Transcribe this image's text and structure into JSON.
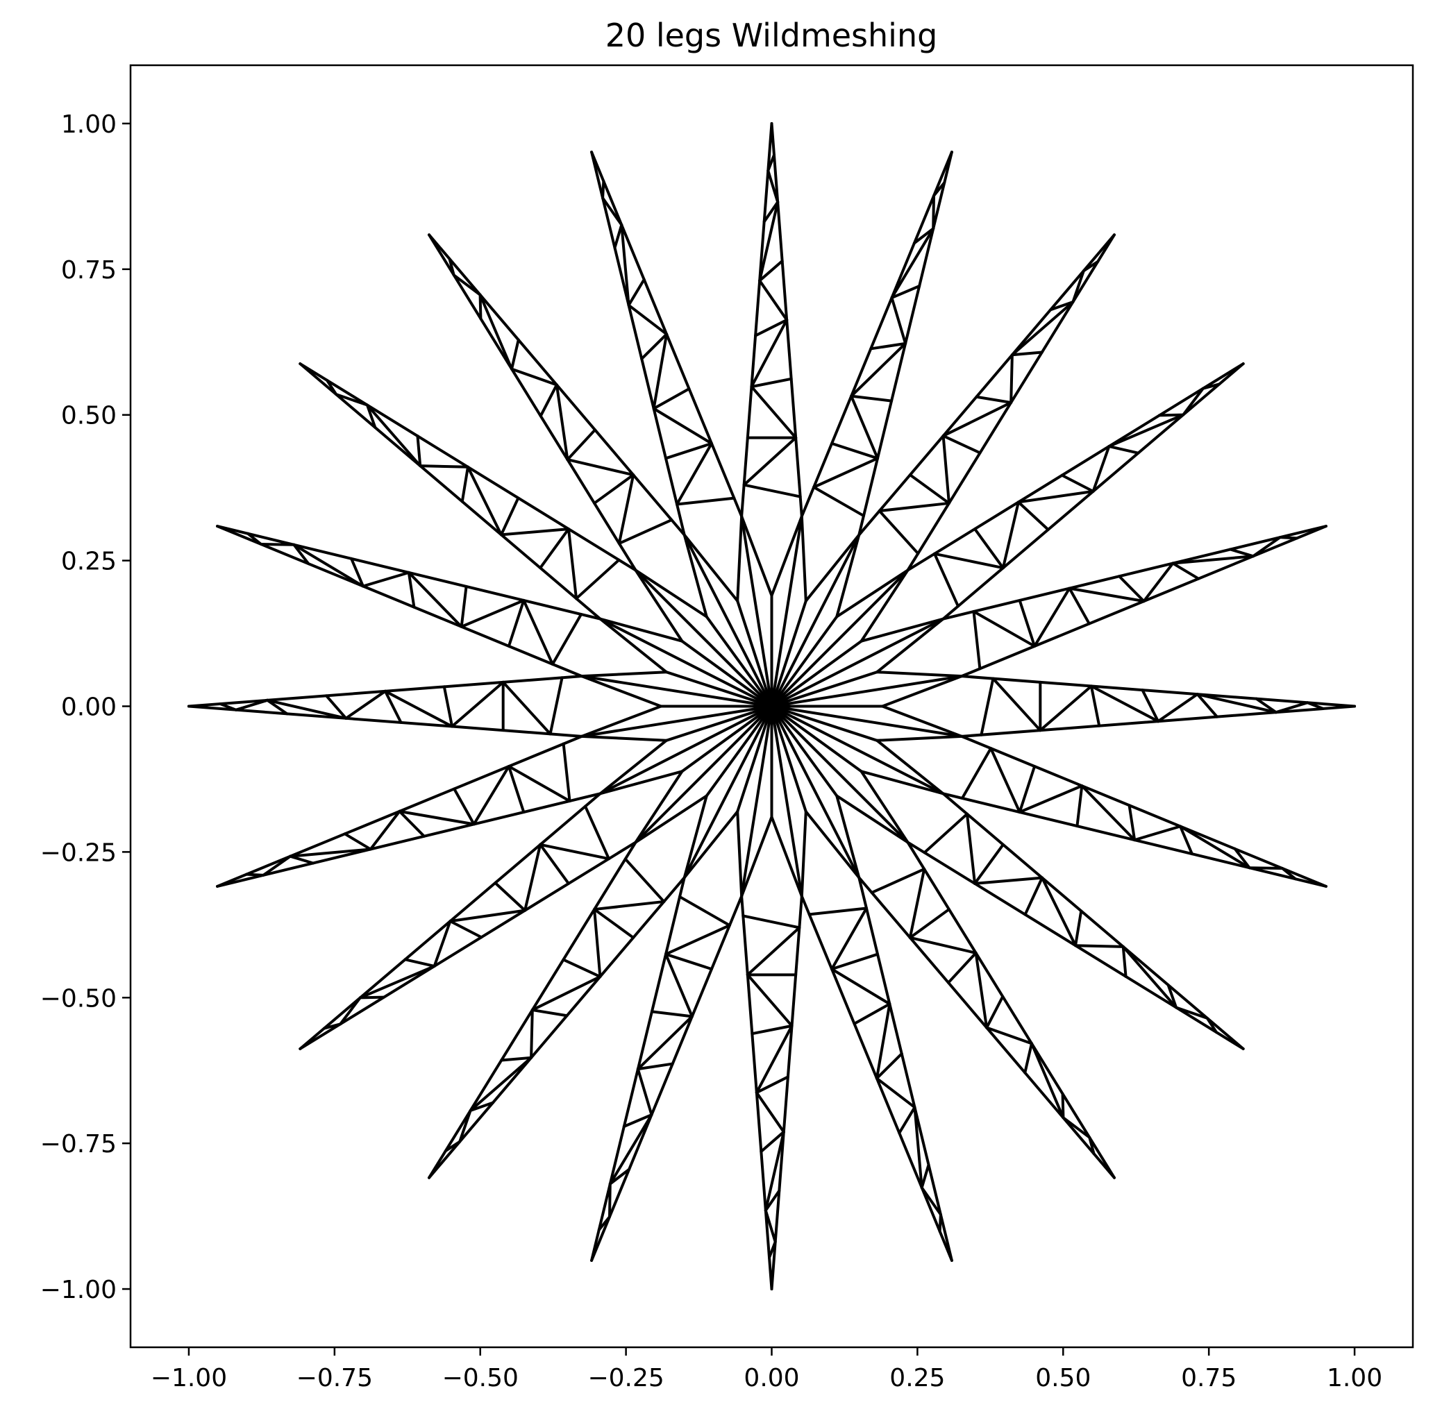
{
  "chart_data": {
    "type": "line",
    "title": "20 legs Wildmeshing",
    "xlabel": "",
    "ylabel": "",
    "xlim": [
      -1.1,
      1.1
    ],
    "ylim": [
      -1.1,
      1.1
    ],
    "grid": false,
    "xticks": [
      "-1.00",
      "-0.75",
      "-0.50",
      "-0.25",
      "0.00",
      "0.25",
      "0.50",
      "0.75",
      "1.00"
    ],
    "yticks": [
      "1.00",
      "0.75",
      "0.50",
      "0.25",
      "0.00",
      "-0.25",
      "-0.50",
      "-0.75",
      "-1.00"
    ],
    "xtick_labels": [
      "−1.00",
      "−0.75",
      "−0.50",
      "−0.25",
      "0.00",
      "0.25",
      "0.50",
      "0.75",
      "1.00"
    ],
    "ytick_labels": [
      "1.00",
      "0.75",
      "0.50",
      "0.25",
      "0.00",
      "−0.25",
      "−0.50",
      "−0.75",
      "−1.00"
    ],
    "star": {
      "legs": 20,
      "outer_radius": 1.0,
      "inner_radius": 0.33,
      "inner_radius_2": 0.19,
      "center": [
        0,
        0
      ]
    },
    "leg_mesh_points": [
      [
        0.05,
        0.0,
        0.08,
        0.12
      ],
      [
        0.2,
        0.5,
        0.2,
        0.45
      ],
      [
        0.35,
        0.0,
        0.33,
        0.55
      ],
      [
        0.5,
        0.5,
        0.46,
        0.6
      ],
      [
        0.65,
        0.0,
        0.6,
        0.7
      ],
      [
        0.8,
        0.5,
        0.75,
        0.8
      ],
      [
        0.92,
        0.0,
        0.88,
        0.92
      ]
    ],
    "color": "#000000"
  }
}
